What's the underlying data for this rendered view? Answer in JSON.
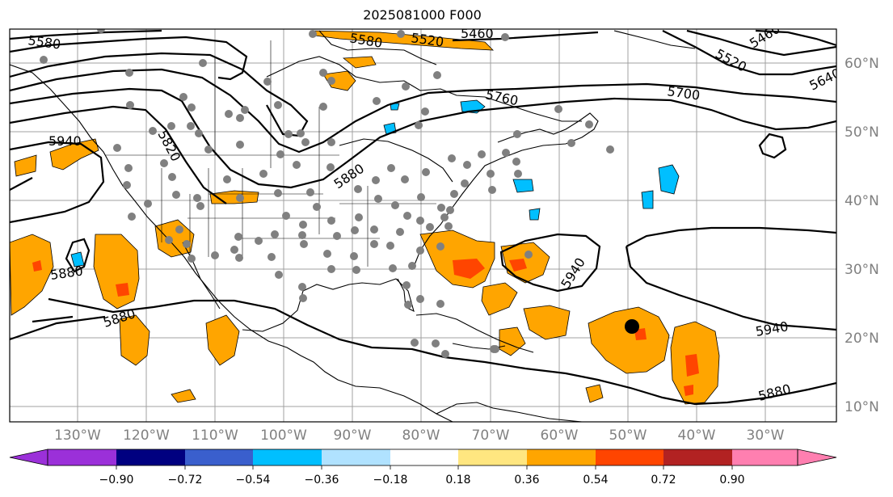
{
  "title": "2025081000 F000",
  "colors": {
    "orange": "#ffa500",
    "orange_red": "#ff4500",
    "deep_sky_blue": "#00bfff",
    "contour": "#000000",
    "station": "#808080",
    "gridline": "#a0a0a0"
  },
  "lat_labels": [
    "60°N",
    "50°N",
    "40°N",
    "30°N",
    "20°N",
    "10°N"
  ],
  "lon_labels": [
    "130°W",
    "120°W",
    "110°W",
    "100°W",
    "90°W",
    "80°W",
    "70°W",
    "60°W",
    "50°W",
    "40°W",
    "30°W"
  ],
  "contour_labels": [
    "5580",
    "5580",
    "5520",
    "5460",
    "5460",
    "5520",
    "5640",
    "5700",
    "5760",
    "5820",
    "5880",
    "5940",
    "5880",
    "5880",
    "5940",
    "5940",
    "5880"
  ],
  "colorbar": {
    "colors": [
      "#9b30d9",
      "#000080",
      "#3a5fcd",
      "#00bfff",
      "#b0e2ff",
      "#ffffff",
      "#ffe680",
      "#ffa500",
      "#ff4500",
      "#b22222",
      "#ff7fb0"
    ],
    "tick_labels": [
      "−0.90",
      "−0.72",
      "−0.54",
      "−0.36",
      "−0.18",
      "0.18",
      "0.36",
      "0.54",
      "0.72",
      "0.90"
    ]
  },
  "marker": {
    "name": "center-marker",
    "color": "#000000"
  }
}
